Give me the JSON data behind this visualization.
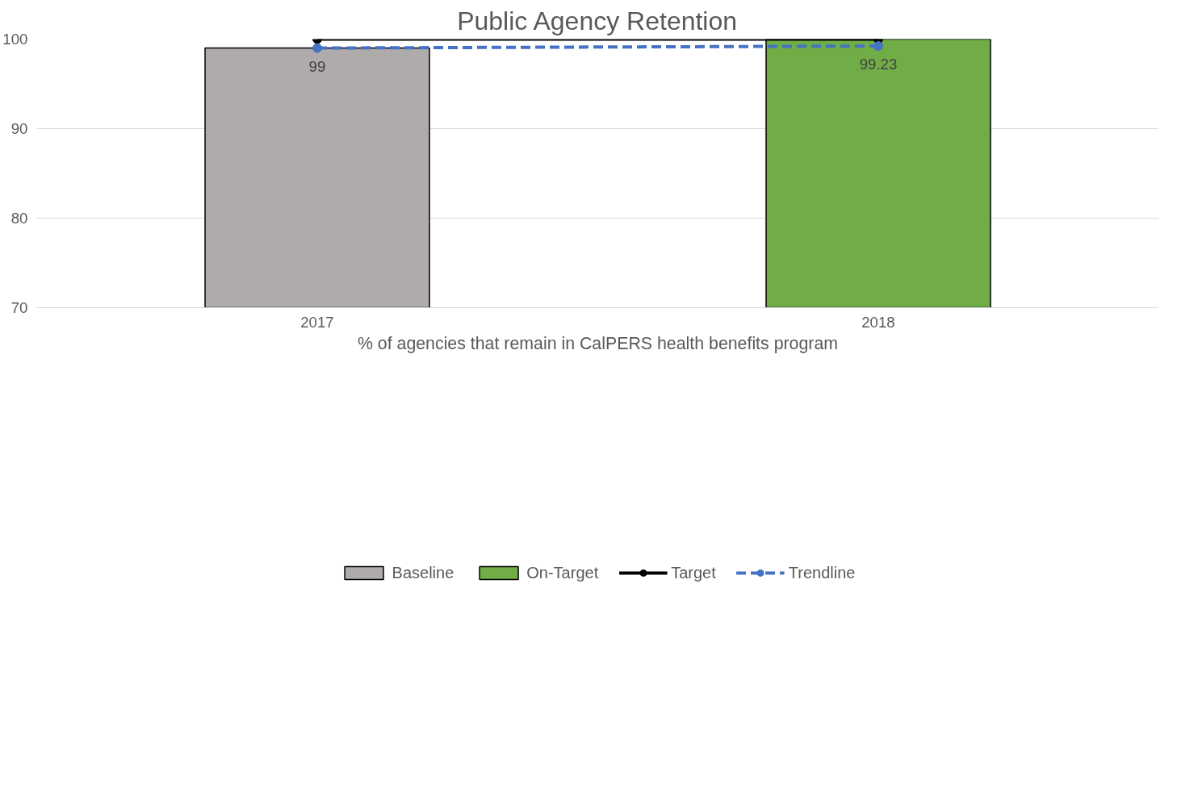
{
  "chart_data": {
    "type": "bar",
    "title": "Public Agency Retention",
    "xlabel": "% of agencies that remain in CalPERS health benefits program",
    "categories": [
      "2017",
      "2018"
    ],
    "series": [
      {
        "name": "Baseline",
        "color": "#afabab",
        "values": [
          99,
          null
        ]
      },
      {
        "name": "On-Target",
        "color": "#70ad47",
        "values": [
          null,
          100
        ]
      },
      {
        "name": "Target",
        "type": "line",
        "color": "#000000",
        "marker": "circle",
        "line_style": "solid",
        "values": [
          100,
          100
        ]
      },
      {
        "name": "Trendline",
        "type": "line",
        "color": "#4472c4",
        "marker": "circle",
        "line_style": "dashed",
        "values": [
          99,
          99.23
        ],
        "value_labels": [
          "99",
          "99.23"
        ]
      }
    ],
    "ylim": [
      70,
      100
    ],
    "yticks": [
      70,
      80,
      90,
      100
    ],
    "grid": "y",
    "legend": "bottom"
  }
}
